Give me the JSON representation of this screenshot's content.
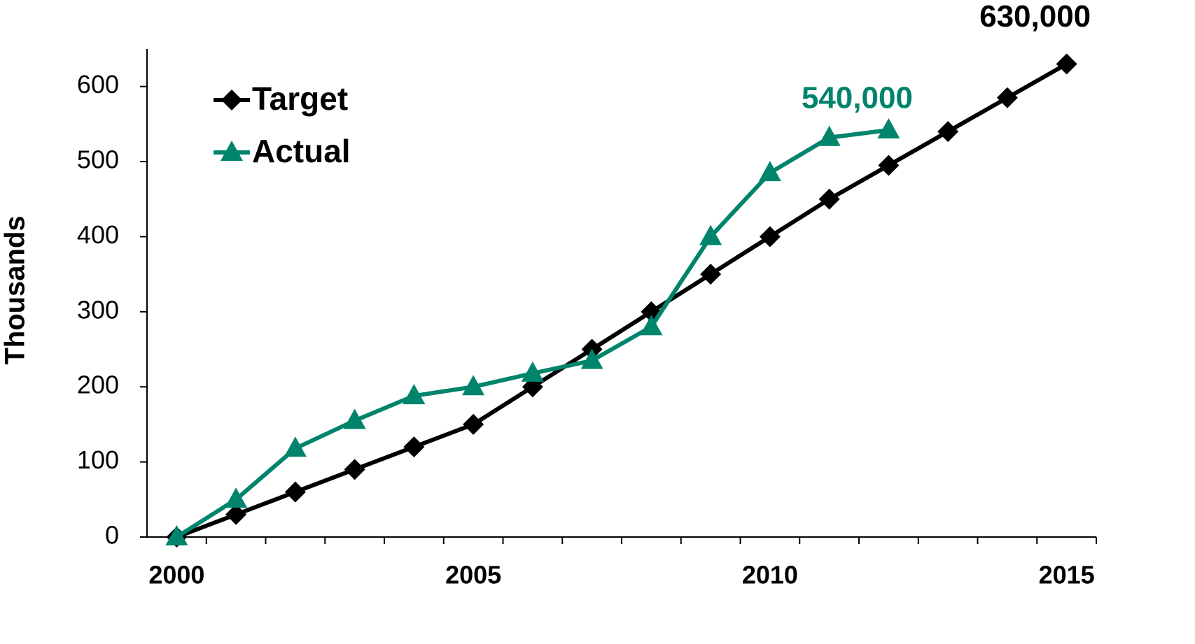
{
  "chart_data": {
    "type": "line",
    "ylabel": "Thousands",
    "categories": [
      "2000",
      null,
      null,
      null,
      null,
      "2005",
      null,
      null,
      null,
      null,
      "2010",
      null,
      null,
      null,
      null,
      "2015"
    ],
    "series": [
      {
        "name": "Target",
        "color": "#000000",
        "marker": "diamond",
        "values": [
          0,
          30,
          60,
          90,
          120,
          150,
          200,
          250,
          300,
          350,
          400,
          450,
          495,
          540,
          585,
          630
        ],
        "value_labels": [
          null,
          null,
          null,
          null,
          null,
          null,
          null,
          null,
          null,
          null,
          null,
          null,
          null,
          null,
          null,
          "630,000"
        ]
      },
      {
        "name": "Actual",
        "color": "#00846c",
        "marker": "triangle",
        "values": [
          0,
          50,
          118,
          155,
          188,
          200,
          218,
          235,
          280,
          400,
          485,
          532,
          542,
          null,
          null,
          null
        ],
        "value_labels": [
          null,
          null,
          null,
          null,
          null,
          null,
          null,
          null,
          null,
          null,
          null,
          null,
          "540,000",
          null,
          null,
          null
        ]
      }
    ],
    "ylim": [
      0,
      650
    ],
    "yticks": [
      0,
      100,
      200,
      300,
      400,
      500,
      600
    ],
    "grid": false,
    "legend": "upper left"
  }
}
